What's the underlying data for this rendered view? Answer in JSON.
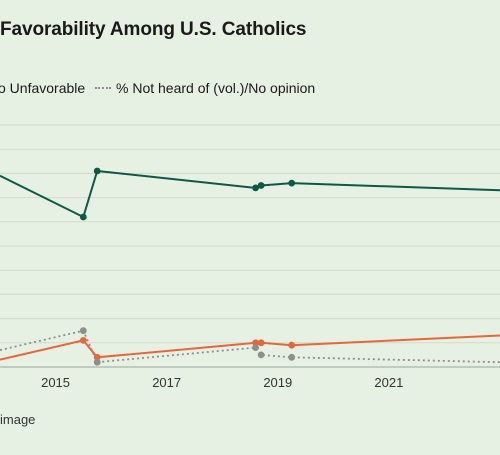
{
  "chart_data": {
    "type": "line",
    "title": "Favorability Among U.S. Catholics",
    "x_ticks": [
      2015,
      2017,
      2019,
      2021
    ],
    "xlim": [
      2014,
      2023
    ],
    "ylim": [
      0,
      100
    ],
    "grid": true,
    "legend_placement": "top-left",
    "series": [
      {
        "name": "",
        "color": "#0c5a45",
        "style": "solid",
        "points": [
          [
            2014.0,
            79
          ],
          [
            2015.5,
            62
          ],
          [
            2015.75,
            81
          ],
          [
            2018.6,
            74
          ],
          [
            2018.7,
            75
          ],
          [
            2019.25,
            76
          ],
          [
            2023.0,
            73
          ]
        ]
      },
      {
        "name": "% Unfavorable",
        "color": "#e3693a",
        "style": "solid",
        "points": [
          [
            2014.0,
            3
          ],
          [
            2015.5,
            11
          ],
          [
            2015.75,
            4
          ],
          [
            2018.6,
            10
          ],
          [
            2018.7,
            10
          ],
          [
            2019.25,
            9
          ],
          [
            2023.0,
            13
          ]
        ]
      },
      {
        "name": "% Not heard of (vol.)/No opinion",
        "color": "#8e8e8e",
        "style": "dotted",
        "points": [
          [
            2014.0,
            7
          ],
          [
            2015.5,
            15
          ],
          [
            2015.75,
            2
          ],
          [
            2018.6,
            8
          ],
          [
            2018.7,
            5
          ],
          [
            2019.25,
            4
          ],
          [
            2023.0,
            2
          ]
        ]
      }
    ]
  },
  "legend": {
    "unfavorable": "o Unfavorable",
    "no_opinion": "% Not heard of (vol.)/No opinion"
  },
  "footer": "image"
}
